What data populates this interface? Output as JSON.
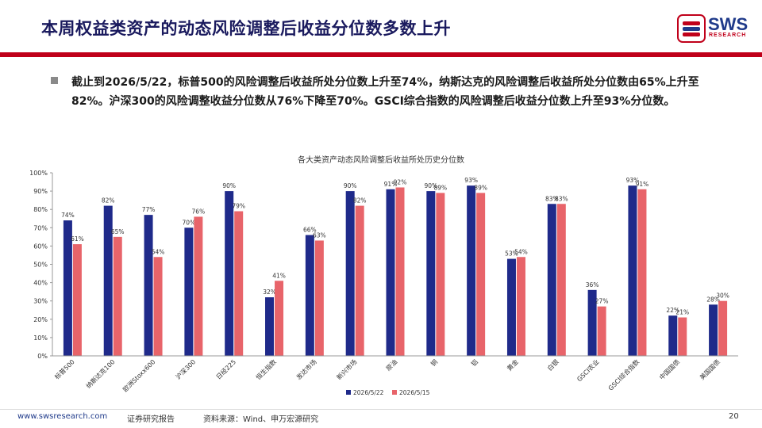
{
  "header": {
    "title": "本周权益类资产的动态风险调整后收益分位数多数上升",
    "logo_text": "SWS",
    "logo_sub": "RESEARCH"
  },
  "bullet": {
    "text": "截止到2026/5/22，标普500的风险调整后收益所处分位数上升至74%，纳斯达克的风险调整后收益所处分位数由65%上升至82%。沪深300的风险调整收益分位数从76%下降至70%。GSCI综合指数的风险调整后收益分位数上升至93%分位数。"
  },
  "footer": {
    "url": "www.swsresearch.com",
    "doc_type": "证券研究报告",
    "source": "资料来源：Wind、申万宏源研究",
    "page": "20"
  },
  "colors": {
    "brand_navy": "#1a1a5e",
    "brand_red": "#c0001a",
    "series_1": "#1f2a8a",
    "series_2": "#e8646a"
  },
  "chart_data": {
    "type": "bar",
    "title": "各大类资产动态风险调整后收益所处历史分位数",
    "categories": [
      "标普500",
      "纳斯达克100",
      "欧洲Stoxx600",
      "沪深300",
      "日经225",
      "恒生指数",
      "发达市场",
      "新兴市场",
      "原油",
      "铜",
      "铝",
      "黄金",
      "白银",
      "GSCI农业",
      "GSCI综合指数",
      "中国国债",
      "美国国债"
    ],
    "series": [
      {
        "name": "2026/5/22",
        "values": [
          74,
          82,
          77,
          70,
          90,
          32,
          66,
          90,
          91,
          90,
          93,
          53,
          83,
          36,
          93,
          22,
          28
        ]
      },
      {
        "name": "2026/5/15",
        "values": [
          61,
          65,
          54,
          76,
          79,
          41,
          63,
          82,
          92,
          89,
          89,
          54,
          83,
          27,
          91,
          21,
          30
        ]
      }
    ],
    "y_ticks": [
      "0%",
      "10%",
      "20%",
      "30%",
      "40%",
      "50%",
      "60%",
      "70%",
      "80%",
      "90%",
      "100%"
    ],
    "ylim": [
      0,
      100
    ],
    "unit": "%",
    "legend_position": "bottom",
    "grid": false
  }
}
